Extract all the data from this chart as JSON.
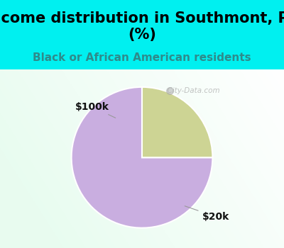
{
  "title": "Income distribution in Southmont, PA\n(%)",
  "subtitle": "Black or African American residents",
  "slices": [
    75,
    25
  ],
  "labels": [
    "$20k",
    "$100k"
  ],
  "slice_colors": [
    "#c9aee0",
    "#cdd494"
  ],
  "explode": [
    0,
    0.0
  ],
  "startangle": 90,
  "title_fontsize": 15,
  "subtitle_fontsize": 11,
  "label_fontsize": 10,
  "title_color": "#000000",
  "subtitle_color": "#2e8b8b",
  "bg_color": "#00f0f0",
  "watermark": "  City-Data.com",
  "watermark_color": "#aaaaaa"
}
